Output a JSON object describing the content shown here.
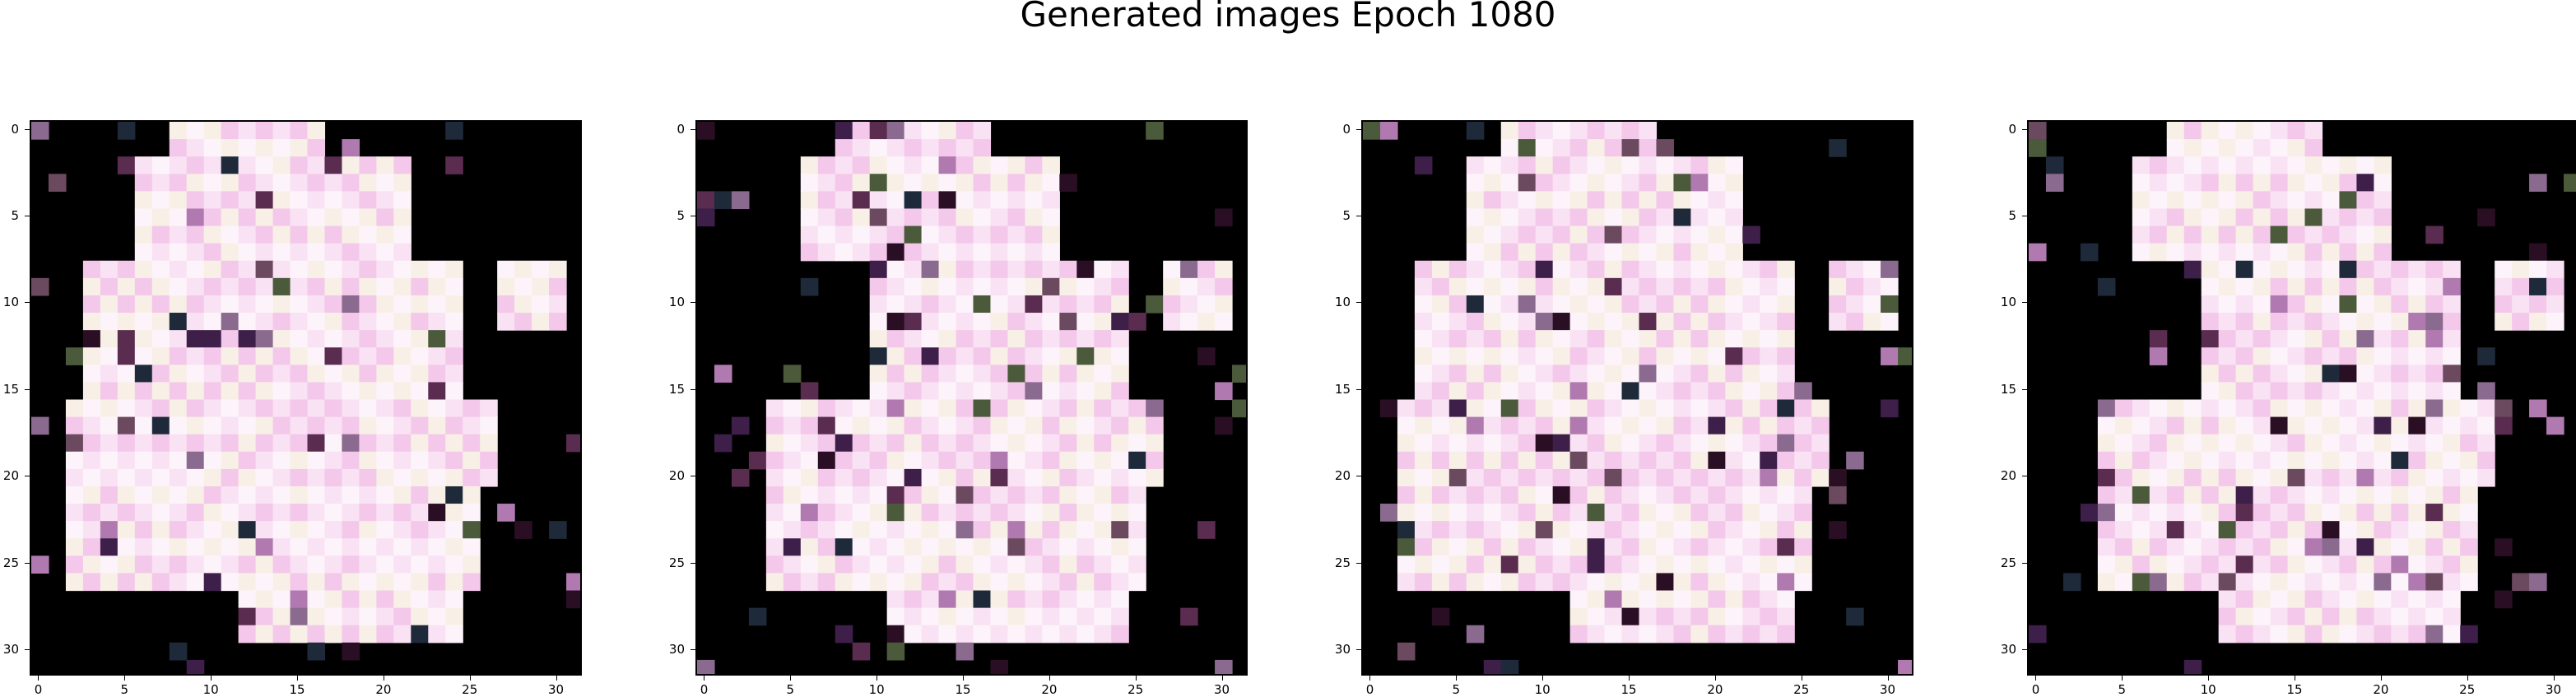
{
  "figure": {
    "title": "Generated images Epoch 1080",
    "x_ticks": [
      "0",
      "5",
      "10",
      "15",
      "20",
      "25",
      "30"
    ],
    "y_ticks": [
      "0",
      "5",
      "10",
      "15",
      "20",
      "25",
      "30"
    ]
  },
  "panels": [
    {
      "name": "generated-image-1"
    },
    {
      "name": "generated-image-2"
    },
    {
      "name": "generated-image-3"
    },
    {
      "name": "generated-image-4"
    }
  ],
  "colors": {
    "background": "#000000",
    "pink_light": "#f9e2f3",
    "pink_mid": "#f4c8ea",
    "cream": "#f8f0e6",
    "white_pink": "#fdf4fb"
  }
}
